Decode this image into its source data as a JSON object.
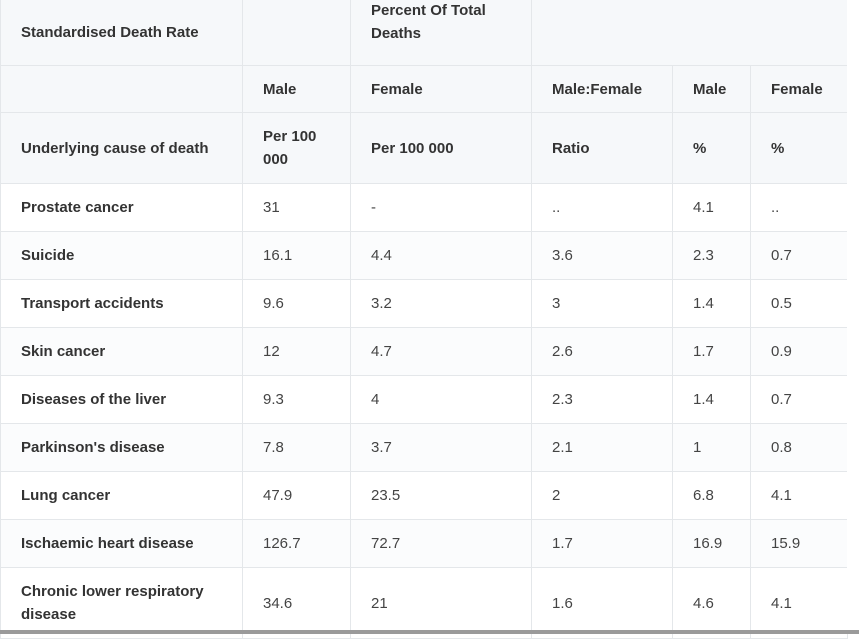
{
  "table": {
    "header_top": {
      "standardised_label": "Standardised Death Rate",
      "percent_label": "Percent Of Total Deaths"
    },
    "header_sex": [
      "",
      "Male",
      "Female",
      "Male:Female",
      "Male",
      "Female"
    ],
    "header_units": [
      "Underlying cause of death",
      "Per 100 000",
      "Per 100 000",
      "Ratio",
      "%",
      "%"
    ],
    "rows": [
      {
        "cause": "Prostate cancer",
        "male_rate": "31",
        "female_rate": "-",
        "ratio": "..",
        "male_pct": "4.1",
        "female_pct": ".."
      },
      {
        "cause": "Suicide",
        "male_rate": "16.1",
        "female_rate": "4.4",
        "ratio": "3.6",
        "male_pct": "2.3",
        "female_pct": "0.7"
      },
      {
        "cause": "Transport accidents",
        "male_rate": "9.6",
        "female_rate": "3.2",
        "ratio": "3",
        "male_pct": "1.4",
        "female_pct": "0.5"
      },
      {
        "cause": "Skin cancer",
        "male_rate": "12",
        "female_rate": "4.7",
        "ratio": "2.6",
        "male_pct": "1.7",
        "female_pct": "0.9"
      },
      {
        "cause": "Diseases of the liver",
        "male_rate": "9.3",
        "female_rate": "4",
        "ratio": "2.3",
        "male_pct": "1.4",
        "female_pct": "0.7"
      },
      {
        "cause": "Parkinson's disease",
        "male_rate": "7.8",
        "female_rate": "3.7",
        "ratio": "2.1",
        "male_pct": "1",
        "female_pct": "0.8"
      },
      {
        "cause": "Lung cancer",
        "male_rate": "47.9",
        "female_rate": "23.5",
        "ratio": "2",
        "male_pct": "6.8",
        "female_pct": "4.1"
      },
      {
        "cause": "Ischaemic heart disease",
        "male_rate": "126.7",
        "female_rate": "72.7",
        "ratio": "1.7",
        "male_pct": "16.9",
        "female_pct": "15.9"
      },
      {
        "cause": "Chronic lower respiratory disease",
        "male_rate": "34.6",
        "female_rate": "21",
        "ratio": "1.6",
        "male_pct": "4.6",
        "female_pct": "4.1"
      }
    ]
  }
}
